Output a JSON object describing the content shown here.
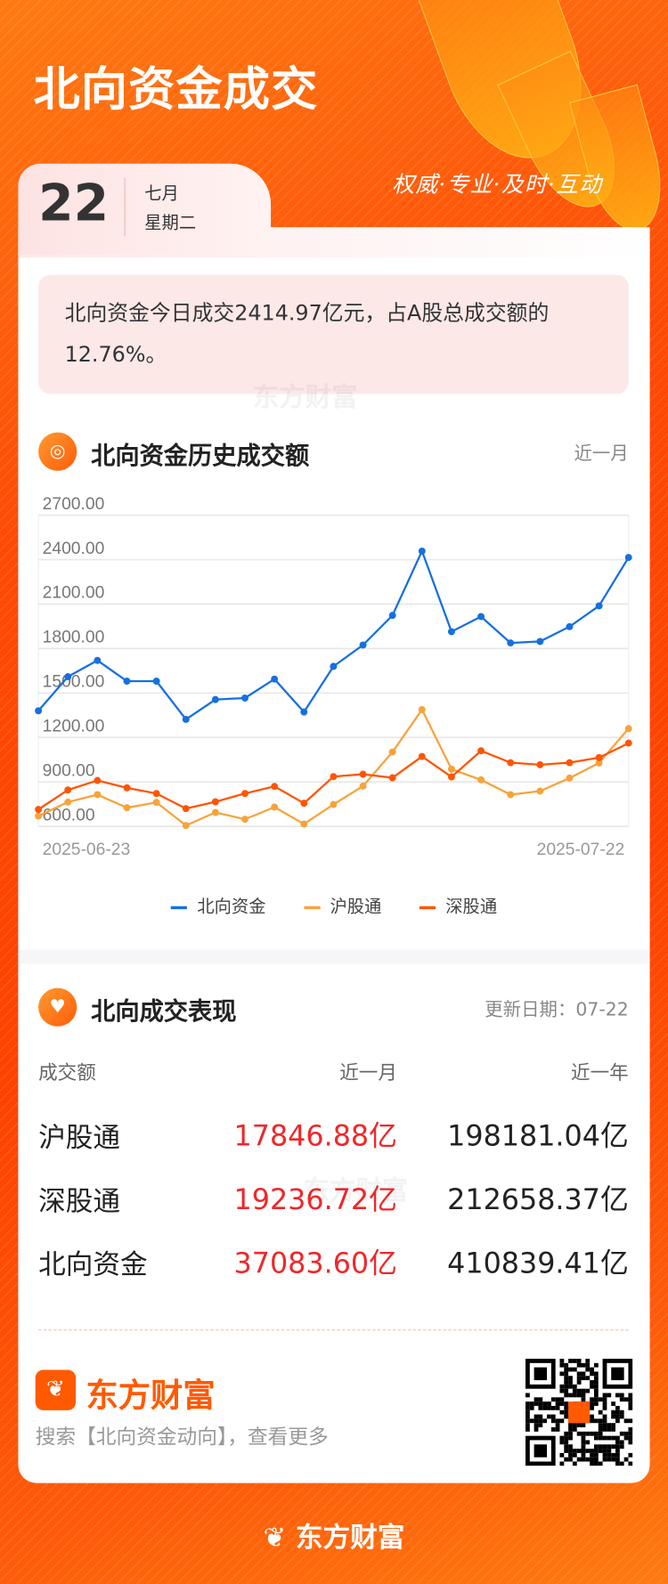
{
  "header": {
    "title": "北向资金成交",
    "slogan": "权威·专业·及时·互动",
    "date_day": "22",
    "date_month": "七月",
    "date_weekday": "星期二"
  },
  "summary": {
    "text": "北向资金今日成交2414.97亿元，占A股总成交额的12.76%。"
  },
  "watermark": "东方财富",
  "history": {
    "title": "北向资金历史成交额",
    "range_label": "近一月"
  },
  "chart_data": {
    "type": "line",
    "x_tick_labels": [
      "2025-06-23",
      "2025-07-22"
    ],
    "y_tick_labels": [
      "2700.00",
      "2400.00",
      "2100.00",
      "1800.00",
      "1500.00",
      "1200.00",
      "900.00",
      "600.00"
    ],
    "ylim": [
      600,
      2700
    ],
    "grid": true,
    "legend": "bottom",
    "series": [
      {
        "name": "北向资金",
        "color": "#1570e0",
        "values": [
          1380,
          1610,
          1720,
          1580,
          1580,
          1322,
          1456,
          1466,
          1594,
          1372,
          1680,
          1824,
          2024,
          2458,
          1914,
          2016,
          1838,
          1848,
          1948,
          2088,
          2415
        ]
      },
      {
        "name": "沪股通",
        "color": "#f7a33a",
        "values": [
          670,
          764,
          814,
          726,
          762,
          606,
          694,
          648,
          730,
          616,
          748,
          872,
          1102,
          1388,
          986,
          914,
          814,
          838,
          926,
          1028,
          1260
        ]
      },
      {
        "name": "深股通",
        "color": "#ff5500",
        "values": [
          714,
          846,
          910,
          860,
          822,
          720,
          766,
          822,
          870,
          756,
          936,
          952,
          928,
          1072,
          934,
          1110,
          1030,
          1016,
          1030,
          1064,
          1162
        ]
      }
    ]
  },
  "performance": {
    "title": "北向成交表现",
    "updated": "更新日期：07-22",
    "columns": [
      "成交额",
      "近一月",
      "近一年"
    ],
    "rows": [
      {
        "label": "沪股通",
        "month": "17846.88亿",
        "year": "198181.04亿"
      },
      {
        "label": "深股通",
        "month": "19236.72亿",
        "year": "212658.37亿"
      },
      {
        "label": "北向资金",
        "month": "37083.60亿",
        "year": "410839.41亿"
      }
    ]
  },
  "footer": {
    "brand": "东方财富",
    "search_hint": "搜索【北向资金动向】，查看更多"
  },
  "colors": {
    "background": "#ff4a05",
    "accent": "#ff5a00",
    "value_red": "#f0262a"
  }
}
